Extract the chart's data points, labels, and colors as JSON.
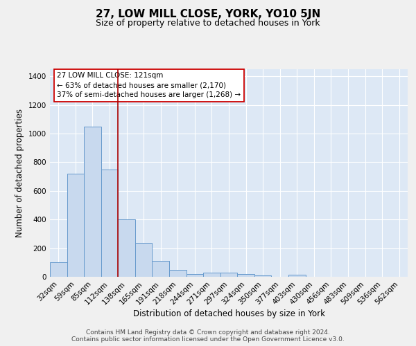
{
  "title": "27, LOW MILL CLOSE, YORK, YO10 5JN",
  "subtitle": "Size of property relative to detached houses in York",
  "xlabel": "Distribution of detached houses by size in York",
  "ylabel": "Number of detached properties",
  "categories": [
    "32sqm",
    "59sqm",
    "85sqm",
    "112sqm",
    "138sqm",
    "165sqm",
    "191sqm",
    "218sqm",
    "244sqm",
    "271sqm",
    "297sqm",
    "324sqm",
    "350sqm",
    "377sqm",
    "403sqm",
    "430sqm",
    "456sqm",
    "483sqm",
    "509sqm",
    "536sqm",
    "562sqm"
  ],
  "values": [
    100,
    720,
    1050,
    750,
    400,
    235,
    110,
    50,
    20,
    28,
    28,
    20,
    12,
    0,
    15,
    0,
    0,
    0,
    0,
    0,
    0
  ],
  "bar_color": "#c8d9ee",
  "bar_edge_color": "#6699cc",
  "bar_edge_width": 0.7,
  "red_line_x": 3.5,
  "red_line_color": "#aa0000",
  "ylim": [
    0,
    1450
  ],
  "yticks": [
    0,
    200,
    400,
    600,
    800,
    1000,
    1200,
    1400
  ],
  "annotation_line1": "27 LOW MILL CLOSE: 121sqm",
  "annotation_line2": "← 63% of detached houses are smaller (2,170)",
  "annotation_line3": "37% of semi-detached houses are larger (1,268) →",
  "annotation_box_color": "#ffffff",
  "annotation_box_edgecolor": "#cc0000",
  "background_color": "#dde8f5",
  "grid_color": "#ffffff",
  "footer_text": "Contains HM Land Registry data © Crown copyright and database right 2024.\nContains public sector information licensed under the Open Government Licence v3.0.",
  "title_fontsize": 11,
  "subtitle_fontsize": 9,
  "xlabel_fontsize": 8.5,
  "ylabel_fontsize": 8.5,
  "tick_fontsize": 7.5,
  "annotation_fontsize": 7.5,
  "footer_fontsize": 6.5
}
